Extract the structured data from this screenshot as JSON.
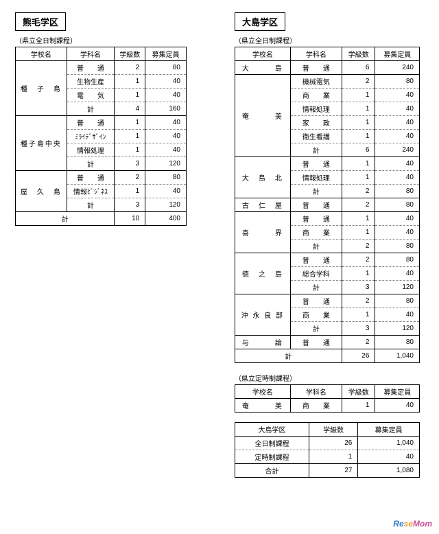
{
  "left": {
    "district": "熊毛学区",
    "caption": "（県立全日制課程）",
    "headers": [
      "学校名",
      "学科名",
      "学級数",
      "募集定員"
    ],
    "groups": [
      {
        "school": "種　子　島",
        "rows": [
          {
            "dept": "普　　通",
            "cls": "2",
            "cap": "80"
          },
          {
            "dept": "生物生産",
            "cls": "1",
            "cap": "40"
          },
          {
            "dept": "電　　気",
            "cls": "1",
            "cap": "40"
          },
          {
            "dept": "計",
            "cls": "4",
            "cap": "160"
          }
        ]
      },
      {
        "school": "種子島中央",
        "rows": [
          {
            "dept": "普　　通",
            "cls": "1",
            "cap": "40"
          },
          {
            "dept": "ﾐﾗｲﾃﾞｻﾞｲﾝ",
            "cls": "1",
            "cap": "40"
          },
          {
            "dept": "情報処理",
            "cls": "1",
            "cap": "40"
          },
          {
            "dept": "計",
            "cls": "3",
            "cap": "120"
          }
        ]
      },
      {
        "school": "屋　久　島",
        "rows": [
          {
            "dept": "普　　通",
            "cls": "2",
            "cap": "80"
          },
          {
            "dept": "情報ﾋﾞｼﾞﾈｽ",
            "cls": "1",
            "cap": "40"
          },
          {
            "dept": "計",
            "cls": "3",
            "cap": "120"
          }
        ]
      }
    ],
    "total": {
      "label": "計",
      "cls": "10",
      "cap": "400"
    }
  },
  "right": {
    "district": "大島学区",
    "caption1": "（県立全日制課程）",
    "headers": [
      "学校名",
      "学科名",
      "学級数",
      "募集定員"
    ],
    "groups": [
      {
        "school": "大　　　島",
        "rows": [
          {
            "dept": "普　　通",
            "cls": "6",
            "cap": "240"
          }
        ]
      },
      {
        "school": "奄　　　美",
        "rows": [
          {
            "dept": "機械電気",
            "cls": "2",
            "cap": "80"
          },
          {
            "dept": "商　　業",
            "cls": "1",
            "cap": "40"
          },
          {
            "dept": "情報処理",
            "cls": "1",
            "cap": "40"
          },
          {
            "dept": "家　　政",
            "cls": "1",
            "cap": "40"
          },
          {
            "dept": "衛生看護",
            "cls": "1",
            "cap": "40"
          },
          {
            "dept": "計",
            "cls": "6",
            "cap": "240"
          }
        ]
      },
      {
        "school": "大　島　北",
        "rows": [
          {
            "dept": "普　　通",
            "cls": "1",
            "cap": "40"
          },
          {
            "dept": "情報処理",
            "cls": "1",
            "cap": "40"
          },
          {
            "dept": "計",
            "cls": "2",
            "cap": "80"
          }
        ]
      },
      {
        "school": "古　仁　屋",
        "rows": [
          {
            "dept": "普　　通",
            "cls": "2",
            "cap": "80"
          }
        ]
      },
      {
        "school": "喜　　　界",
        "rows": [
          {
            "dept": "普　　通",
            "cls": "1",
            "cap": "40"
          },
          {
            "dept": "商　　業",
            "cls": "1",
            "cap": "40"
          },
          {
            "dept": "計",
            "cls": "2",
            "cap": "80"
          }
        ]
      },
      {
        "school": "徳　之　島",
        "rows": [
          {
            "dept": "普　　通",
            "cls": "2",
            "cap": "80"
          },
          {
            "dept": "総合学科",
            "cls": "1",
            "cap": "40"
          },
          {
            "dept": "計",
            "cls": "3",
            "cap": "120"
          }
        ]
      },
      {
        "school": "沖 永 良 部",
        "rows": [
          {
            "dept": "普　　通",
            "cls": "2",
            "cap": "80"
          },
          {
            "dept": "商　　業",
            "cls": "1",
            "cap": "40"
          },
          {
            "dept": "計",
            "cls": "3",
            "cap": "120"
          }
        ]
      },
      {
        "school": "与　　　論",
        "rows": [
          {
            "dept": "普　　通",
            "cls": "2",
            "cap": "80"
          }
        ]
      }
    ],
    "total1": {
      "label": "計",
      "cls": "26",
      "cap": "1,040"
    },
    "caption2": "（県立定時制課程）",
    "pt_row": {
      "school": "奄　　　美",
      "dept": "商　　業",
      "cls": "1",
      "cap": "40"
    },
    "summary": {
      "title": "大島学区",
      "rows": [
        {
          "label": "全日制課程",
          "cls": "26",
          "cap": "1,040"
        },
        {
          "label": "定時制課程",
          "cls": "1",
          "cap": "40"
        },
        {
          "label": "合計",
          "cls": "27",
          "cap": "1,080"
        }
      ]
    }
  },
  "logo": {
    "re": "Re",
    "se": "se",
    "mom": "Mom"
  }
}
